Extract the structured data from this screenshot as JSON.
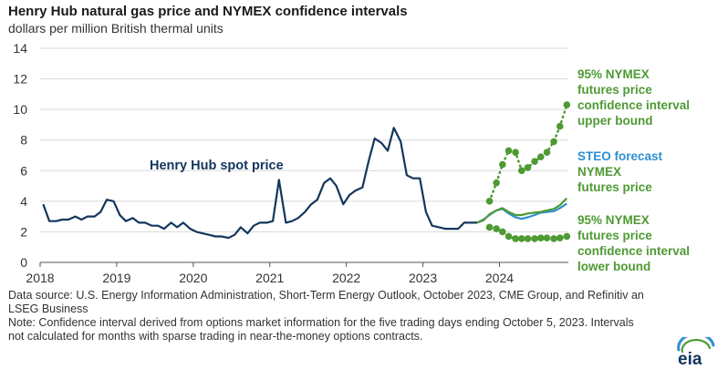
{
  "chart_data": {
    "type": "line",
    "title": "Henry Hub natural gas price and NYMEX confidence intervals",
    "subtitle": "dollars per million British thermal units",
    "xlabel": "",
    "ylabel": "",
    "xlim": [
      2018,
      2024.9
    ],
    "ylim": [
      0,
      14
    ],
    "y_ticks": [
      0,
      2,
      4,
      6,
      8,
      10,
      12,
      14
    ],
    "x_ticks": [
      2018,
      2019,
      2020,
      2021,
      2022,
      2023,
      2024
    ],
    "grid": "horizontal",
    "colors": {
      "spot": "#13365c",
      "steo": "#2e8fd1",
      "nymex": "#4e9a33",
      "bounds": "#4e9a33"
    },
    "series": [
      {
        "name": "Henry Hub spot price",
        "style": "solid",
        "x": [
          2018.04,
          2018.12,
          2018.21,
          2018.29,
          2018.37,
          2018.46,
          2018.54,
          2018.62,
          2018.71,
          2018.79,
          2018.87,
          2018.96,
          2019.04,
          2019.12,
          2019.21,
          2019.29,
          2019.37,
          2019.46,
          2019.54,
          2019.62,
          2019.71,
          2019.79,
          2019.87,
          2019.96,
          2020.04,
          2020.12,
          2020.21,
          2020.29,
          2020.37,
          2020.46,
          2020.54,
          2020.62,
          2020.71,
          2020.79,
          2020.87,
          2020.96,
          2021.04,
          2021.12,
          2021.21,
          2021.29,
          2021.37,
          2021.46,
          2021.54,
          2021.62,
          2021.71,
          2021.79,
          2021.87,
          2021.96,
          2022.04,
          2022.12,
          2022.21,
          2022.29,
          2022.37,
          2022.46,
          2022.54,
          2022.62,
          2022.71,
          2022.79,
          2022.87,
          2022.96,
          2023.04,
          2023.12,
          2023.21,
          2023.29,
          2023.37,
          2023.46,
          2023.54,
          2023.62,
          2023.71
        ],
        "y": [
          3.8,
          2.7,
          2.7,
          2.8,
          2.8,
          3.0,
          2.8,
          3.0,
          3.0,
          3.3,
          4.1,
          4.0,
          3.1,
          2.7,
          2.9,
          2.6,
          2.6,
          2.4,
          2.4,
          2.2,
          2.6,
          2.3,
          2.6,
          2.2,
          2.0,
          1.9,
          1.8,
          1.7,
          1.7,
          1.6,
          1.8,
          2.3,
          1.9,
          2.4,
          2.6,
          2.6,
          2.7,
          5.4,
          2.6,
          2.7,
          2.9,
          3.3,
          3.8,
          4.1,
          5.2,
          5.5,
          5.0,
          3.8,
          4.4,
          4.7,
          4.9,
          6.6,
          8.1,
          7.8,
          7.3,
          8.8,
          7.9,
          5.7,
          5.5,
          5.5,
          3.3,
          2.4,
          2.3,
          2.2,
          2.2,
          2.2,
          2.6,
          2.6,
          2.6
        ]
      },
      {
        "name": "STEO forecast",
        "style": "solid",
        "x": [
          2023.71,
          2023.79,
          2023.87,
          2023.96,
          2024.04,
          2024.12,
          2024.21,
          2024.29,
          2024.37,
          2024.46,
          2024.54,
          2024.62,
          2024.71,
          2024.79,
          2024.88
        ],
        "y": [
          2.6,
          2.8,
          3.1,
          3.4,
          3.5,
          3.2,
          2.95,
          2.85,
          2.95,
          3.1,
          3.25,
          3.3,
          3.35,
          3.55,
          3.85
        ]
      },
      {
        "name": "NYMEX futures price",
        "style": "solid",
        "x": [
          2023.71,
          2023.79,
          2023.87,
          2023.96,
          2024.04,
          2024.12,
          2024.21,
          2024.29,
          2024.37,
          2024.46,
          2024.54,
          2024.62,
          2024.71,
          2024.79,
          2024.88
        ],
        "y": [
          2.6,
          2.75,
          3.15,
          3.4,
          3.55,
          3.3,
          3.1,
          3.1,
          3.2,
          3.25,
          3.3,
          3.4,
          3.5,
          3.75,
          4.2
        ]
      },
      {
        "name": "95% NYMEX futures price confidence interval upper bound",
        "style": "dotted-markers",
        "x": [
          2023.87,
          2023.96,
          2024.04,
          2024.12,
          2024.21,
          2024.29,
          2024.37,
          2024.46,
          2024.54,
          2024.62,
          2024.71,
          2024.79,
          2024.88
        ],
        "y": [
          4.0,
          5.2,
          6.4,
          7.3,
          7.2,
          6.0,
          6.2,
          6.6,
          6.9,
          7.2,
          7.9,
          8.9,
          10.3
        ]
      },
      {
        "name": "95% NYMEX futures price confidence interval lower bound",
        "style": "dotted-markers",
        "x": [
          2023.87,
          2023.96,
          2024.04,
          2024.12,
          2024.21,
          2024.29,
          2024.37,
          2024.46,
          2024.54,
          2024.62,
          2024.71,
          2024.79,
          2024.88
        ],
        "y": [
          2.3,
          2.2,
          2.0,
          1.7,
          1.55,
          1.55,
          1.55,
          1.55,
          1.6,
          1.6,
          1.55,
          1.6,
          1.7
        ]
      }
    ],
    "annotations": {
      "spot_label": "Henry Hub spot price",
      "upper_label": [
        "95% NYMEX",
        "futures price",
        "confidence interval",
        "upper bound"
      ],
      "steo_label": "STEO forecast",
      "nymex_label": [
        "NYMEX",
        "futures price"
      ],
      "lower_label": [
        "95% NYMEX",
        "futures price",
        "confidence interval",
        "lower bound"
      ]
    }
  },
  "notes": {
    "source": "Data source: U.S. Energy Information Administration, Short-Term Energy Outlook, October 2023, CME Group, and Refinitiv an LSEG Business",
    "note": "Note: Confidence interval derived from options market information for the five trading days ending October 5, 2023. Intervals not calculated for months with sparse trading in near-the-money options contracts."
  },
  "logo": {
    "text": "eia",
    "color": "#13365c",
    "accent": "#2e8fd1"
  }
}
